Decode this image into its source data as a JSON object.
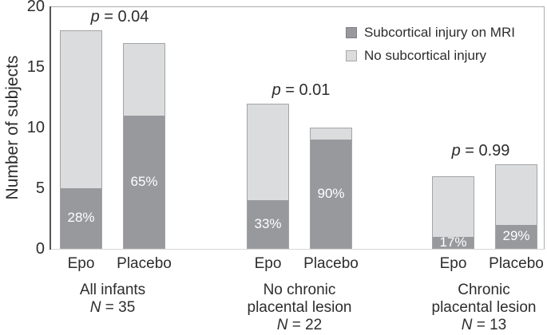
{
  "chart_data": {
    "type": "bar",
    "stacked": true,
    "title": "",
    "ylabel": "Number of subjects",
    "xlabel": "",
    "ylim": [
      0,
      20
    ],
    "yticks": [
      "0",
      "5",
      "10",
      "15",
      "20"
    ],
    "grid": false,
    "legend_position": "top-right",
    "colors": {
      "injury_fill": "#98999c",
      "no_injury_fill": "#dbdcdd",
      "bar_border": "#a3a4a6",
      "axis_line": "#545454",
      "plot_border": "#a9a9a9",
      "baseline": "#d6d6d6",
      "text": "#2d2d2d",
      "pct_text": "#ffffff"
    },
    "legend": [
      {
        "key": "injury",
        "label": "Subcortical injury on MRI",
        "color": "#98999c"
      },
      {
        "key": "no_injury",
        "label": "No subcortical injury",
        "color": "#dbdcdd"
      }
    ],
    "categories": [
      "Epo",
      "Placebo"
    ],
    "groups": [
      {
        "label_lines": [
          "All infants",
          "N = 35"
        ],
        "p_label": "p = 0.04",
        "bars": [
          {
            "label": "Epo",
            "injury": 5,
            "no_injury": 13,
            "total": 18,
            "pct_label": "28%"
          },
          {
            "label": "Placebo",
            "injury": 11,
            "no_injury": 6,
            "total": 17,
            "pct_label": "65%"
          }
        ]
      },
      {
        "label_lines": [
          "No chronic",
          "placental lesion",
          "N = 22"
        ],
        "p_label": "p = 0.01",
        "bars": [
          {
            "label": "Epo",
            "injury": 4,
            "no_injury": 8,
            "total": 12,
            "pct_label": "33%"
          },
          {
            "label": "Placebo",
            "injury": 9,
            "no_injury": 1,
            "total": 10,
            "pct_label": "90%"
          }
        ]
      },
      {
        "label_lines": [
          "Chronic",
          "placental lesion",
          "N = 13"
        ],
        "p_label": "p = 0.99",
        "bars": [
          {
            "label": "Epo",
            "injury": 1,
            "no_injury": 5,
            "total": 6,
            "pct_label": "17%"
          },
          {
            "label": "Placebo",
            "injury": 2,
            "no_injury": 5,
            "total": 7,
            "pct_label": "29%"
          }
        ]
      }
    ]
  }
}
